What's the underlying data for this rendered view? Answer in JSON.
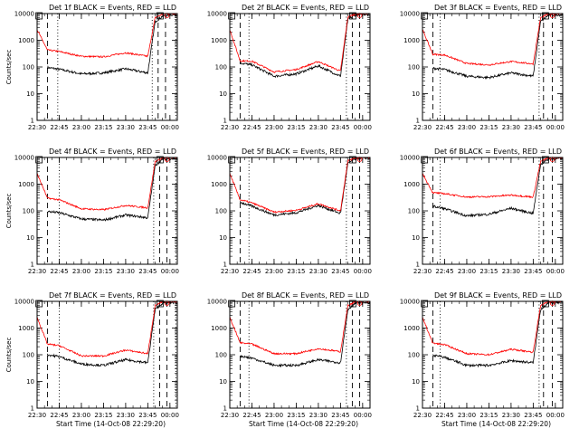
{
  "figure": {
    "background": "#ffffff"
  },
  "colors": {
    "events": "#000000",
    "lld": "#ff0000",
    "axes": "#000000"
  },
  "chart_data": [
    {
      "type": "line",
      "title": "Det 1f BLACK = Events, RED = LLD",
      "xlabel": "",
      "ylabel": "Counts/sec",
      "yscale": "log",
      "ylim": [
        1,
        10000
      ],
      "xticks": [
        "22:30",
        "22:45",
        "23:00",
        "23:15",
        "23:30",
        "23:45",
        "00:00"
      ],
      "yticks": [
        "1",
        "10",
        "100",
        "1000",
        "10000"
      ],
      "x": [
        "22:30",
        "22:37",
        "22:45",
        "23:00",
        "23:15",
        "23:30",
        "23:45",
        "23:50",
        "23:55",
        "00:00"
      ],
      "series": [
        {
          "name": "Events",
          "color": "#000000",
          "values": [
            null,
            95,
            82,
            55,
            60,
            85,
            60,
            5000,
            8000,
            9000
          ]
        },
        {
          "name": "LLD",
          "color": "#ff0000",
          "values": [
            2500,
            430,
            380,
            250,
            240,
            340,
            250,
            7000,
            9500,
            10000
          ]
        }
      ],
      "markers": [
        {
          "style": "dashed",
          "x": "22:37"
        },
        {
          "style": "dotted",
          "x": "22:44"
        },
        {
          "style": "dotted",
          "x": "23:48"
        },
        {
          "style": "dashed",
          "x": "23:52"
        },
        {
          "style": "dashed",
          "x": "23:57"
        },
        {
          "style": "dotted",
          "x": "00:04"
        }
      ]
    },
    {
      "type": "line",
      "title": "Det 2f BLACK = Events, RED = LLD",
      "xlabel": "",
      "ylabel": "",
      "yscale": "log",
      "ylim": [
        1,
        10000
      ],
      "xticks": [
        "22:30",
        "22:45",
        "23:00",
        "23:15",
        "23:30",
        "23:45",
        "00:00"
      ],
      "yticks": [
        "1",
        "10",
        "100",
        "1000",
        "10000"
      ],
      "x": [
        "22:30",
        "22:37",
        "22:45",
        "23:00",
        "23:15",
        "23:30",
        "23:45",
        "23:50",
        "23:55",
        "00:00"
      ],
      "series": [
        {
          "name": "Events",
          "color": "#000000",
          "values": [
            null,
            140,
            120,
            45,
            55,
            110,
            45,
            6000,
            9000,
            9500
          ]
        },
        {
          "name": "LLD",
          "color": "#ff0000",
          "values": [
            2500,
            170,
            165,
            65,
            80,
            160,
            70,
            7500,
            9500,
            10000
          ]
        }
      ],
      "markers": [
        {
          "style": "dashed",
          "x": "22:37"
        },
        {
          "style": "dotted",
          "x": "22:43"
        },
        {
          "style": "dotted",
          "x": "23:49"
        },
        {
          "style": "dashed",
          "x": "23:53"
        },
        {
          "style": "dashed",
          "x": "23:58"
        }
      ]
    },
    {
      "type": "line",
      "title": "Det 3f BLACK = Events, RED = LLD",
      "xlabel": "",
      "ylabel": "",
      "yscale": "log",
      "ylim": [
        1,
        10000
      ],
      "xticks": [
        "22:30",
        "22:45",
        "23:00",
        "23:15",
        "23:30",
        "23:45",
        "00:00"
      ],
      "yticks": [
        "1",
        "10",
        "100",
        "1000",
        "10000"
      ],
      "x": [
        "22:30",
        "22:37",
        "22:45",
        "23:00",
        "23:15",
        "23:30",
        "23:45",
        "23:50",
        "23:55",
        "00:00"
      ],
      "series": [
        {
          "name": "Events",
          "color": "#000000",
          "values": [
            null,
            90,
            80,
            45,
            40,
            60,
            45,
            5000,
            8500,
            9000
          ]
        },
        {
          "name": "LLD",
          "color": "#ff0000",
          "values": [
            2500,
            300,
            280,
            135,
            120,
            160,
            130,
            7000,
            9500,
            10000
          ]
        }
      ],
      "markers": [
        {
          "style": "dashed",
          "x": "22:37"
        },
        {
          "style": "dotted",
          "x": "22:42"
        },
        {
          "style": "dotted",
          "x": "23:49"
        },
        {
          "style": "dashed",
          "x": "23:52"
        },
        {
          "style": "dashed",
          "x": "23:58"
        }
      ]
    },
    {
      "type": "line",
      "title": "Det 4f BLACK = Events, RED = LLD",
      "xlabel": "",
      "ylabel": "Counts/sec",
      "yscale": "log",
      "ylim": [
        1,
        10000
      ],
      "xticks": [
        "22:30",
        "22:45",
        "23:00",
        "23:15",
        "23:30",
        "23:45",
        "00:00"
      ],
      "yticks": [
        "1",
        "10",
        "100",
        "1000",
        "10000"
      ],
      "x": [
        "22:30",
        "22:37",
        "22:45",
        "23:00",
        "23:15",
        "23:30",
        "23:45",
        "23:50",
        "23:55",
        "00:00"
      ],
      "series": [
        {
          "name": "Events",
          "color": "#000000",
          "values": [
            null,
            95,
            85,
            50,
            45,
            70,
            55,
            5000,
            8500,
            9000
          ]
        },
        {
          "name": "LLD",
          "color": "#ff0000",
          "values": [
            2500,
            300,
            260,
            120,
            110,
            160,
            130,
            7000,
            9500,
            10000
          ]
        }
      ],
      "markers": [
        {
          "style": "dashed",
          "x": "22:37"
        },
        {
          "style": "dotted",
          "x": "22:45"
        },
        {
          "style": "dotted",
          "x": "23:49"
        },
        {
          "style": "dashed",
          "x": "23:53"
        },
        {
          "style": "dashed",
          "x": "23:58"
        },
        {
          "style": "dotted",
          "x": "00:04"
        }
      ]
    },
    {
      "type": "line",
      "title": "Det 5f BLACK = Events, RED = LLD",
      "xlabel": "",
      "ylabel": "",
      "yscale": "log",
      "ylim": [
        1,
        10000
      ],
      "xticks": [
        "22:30",
        "22:45",
        "23:00",
        "23:15",
        "23:30",
        "23:45",
        "00:00"
      ],
      "yticks": [
        "1",
        "10",
        "100",
        "1000",
        "10000"
      ],
      "x": [
        "22:30",
        "22:37",
        "22:45",
        "23:00",
        "23:15",
        "23:30",
        "23:45",
        "23:50",
        "23:55",
        "00:00"
      ],
      "series": [
        {
          "name": "Events",
          "color": "#000000",
          "values": [
            null,
            210,
            150,
            70,
            85,
            160,
            80,
            6000,
            9000,
            9500
          ]
        },
        {
          "name": "LLD",
          "color": "#ff0000",
          "values": [
            2500,
            260,
            200,
            90,
            105,
            185,
            100,
            7500,
            9500,
            10000
          ]
        }
      ],
      "markers": [
        {
          "style": "dashed",
          "x": "22:37"
        },
        {
          "style": "dotted",
          "x": "22:43"
        },
        {
          "style": "dotted",
          "x": "23:49"
        },
        {
          "style": "dashed",
          "x": "23:53"
        },
        {
          "style": "dashed",
          "x": "23:58"
        }
      ]
    },
    {
      "type": "line",
      "title": "Det 6f BLACK = Events, RED = LLD",
      "xlabel": "",
      "ylabel": "",
      "yscale": "log",
      "ylim": [
        1,
        10000
      ],
      "xticks": [
        "22:30",
        "22:45",
        "23:00",
        "23:15",
        "23:30",
        "23:45",
        "00:00"
      ],
      "yticks": [
        "1",
        "10",
        "100",
        "1000",
        "10000"
      ],
      "x": [
        "22:30",
        "22:37",
        "22:45",
        "23:00",
        "23:15",
        "23:30",
        "23:45",
        "23:50",
        "23:55",
        "00:00"
      ],
      "series": [
        {
          "name": "Events",
          "color": "#000000",
          "values": [
            null,
            150,
            120,
            65,
            75,
            125,
            80,
            5500,
            8500,
            9000
          ]
        },
        {
          "name": "LLD",
          "color": "#ff0000",
          "values": [
            2500,
            480,
            440,
            330,
            340,
            390,
            330,
            7000,
            9500,
            10000
          ]
        }
      ],
      "markers": [
        {
          "style": "dashed",
          "x": "22:37"
        },
        {
          "style": "dotted",
          "x": "22:42"
        },
        {
          "style": "dotted",
          "x": "23:49"
        },
        {
          "style": "dashed",
          "x": "23:52"
        },
        {
          "style": "dashed",
          "x": "23:58"
        }
      ]
    },
    {
      "type": "line",
      "title": "Det 7f BLACK = Events, RED = LLD",
      "xlabel": "Start Time (14-Oct-08 22:29:20)",
      "ylabel": "Counts/sec",
      "yscale": "log",
      "ylim": [
        1,
        10000
      ],
      "xticks": [
        "22:30",
        "22:45",
        "23:00",
        "23:15",
        "23:30",
        "23:45",
        "00:00"
      ],
      "yticks": [
        "1",
        "10",
        "100",
        "1000",
        "10000"
      ],
      "x": [
        "22:30",
        "22:37",
        "22:45",
        "23:00",
        "23:15",
        "23:30",
        "23:45",
        "23:50",
        "23:55",
        "00:00"
      ],
      "series": [
        {
          "name": "Events",
          "color": "#000000",
          "values": [
            null,
            100,
            85,
            45,
            40,
            65,
            50,
            5000,
            8500,
            9000
          ]
        },
        {
          "name": "LLD",
          "color": "#ff0000",
          "values": [
            2500,
            250,
            220,
            90,
            90,
            150,
            110,
            7000,
            9500,
            10000
          ]
        }
      ],
      "markers": [
        {
          "style": "dashed",
          "x": "22:37"
        },
        {
          "style": "dotted",
          "x": "22:45"
        },
        {
          "style": "dotted",
          "x": "23:49"
        },
        {
          "style": "dashed",
          "x": "23:53"
        },
        {
          "style": "dashed",
          "x": "23:58"
        },
        {
          "style": "dotted",
          "x": "00:04"
        }
      ]
    },
    {
      "type": "line",
      "title": "Det 8f BLACK = Events, RED = LLD",
      "xlabel": "Start Time (14-Oct-08 22:29:20)",
      "ylabel": "",
      "yscale": "log",
      "ylim": [
        1,
        10000
      ],
      "xticks": [
        "22:30",
        "22:45",
        "23:00",
        "23:15",
        "23:30",
        "23:45",
        "00:00"
      ],
      "yticks": [
        "1",
        "10",
        "100",
        "1000",
        "10000"
      ],
      "x": [
        "22:30",
        "22:37",
        "22:45",
        "23:00",
        "23:15",
        "23:30",
        "23:45",
        "23:50",
        "23:55",
        "00:00"
      ],
      "series": [
        {
          "name": "Events",
          "color": "#000000",
          "values": [
            null,
            90,
            75,
            40,
            40,
            65,
            50,
            5000,
            8500,
            9000
          ]
        },
        {
          "name": "LLD",
          "color": "#ff0000",
          "values": [
            2500,
            280,
            250,
            110,
            110,
            170,
            130,
            7000,
            9500,
            10000
          ]
        }
      ],
      "markers": [
        {
          "style": "dashed",
          "x": "22:37"
        },
        {
          "style": "dotted",
          "x": "22:43"
        },
        {
          "style": "dotted",
          "x": "23:49"
        },
        {
          "style": "dashed",
          "x": "23:53"
        },
        {
          "style": "dashed",
          "x": "23:58"
        }
      ]
    },
    {
      "type": "line",
      "title": "Det 9f BLACK = Events, RED = LLD",
      "xlabel": "Start Time (14-Oct-08 22:29:20)",
      "ylabel": "",
      "yscale": "log",
      "ylim": [
        1,
        10000
      ],
      "xticks": [
        "22:30",
        "22:45",
        "23:00",
        "23:15",
        "23:30",
        "23:45",
        "00:00"
      ],
      "yticks": [
        "1",
        "10",
        "100",
        "1000",
        "10000"
      ],
      "x": [
        "22:30",
        "22:37",
        "22:45",
        "23:00",
        "23:15",
        "23:30",
        "23:45",
        "23:50",
        "23:55",
        "00:00"
      ],
      "series": [
        {
          "name": "Events",
          "color": "#000000",
          "values": [
            null,
            95,
            80,
            40,
            40,
            60,
            50,
            5000,
            8500,
            9000
          ]
        },
        {
          "name": "LLD",
          "color": "#ff0000",
          "values": [
            2500,
            270,
            240,
            110,
            100,
            160,
            125,
            7000,
            9500,
            10000
          ]
        }
      ],
      "markers": [
        {
          "style": "dashed",
          "x": "22:37"
        },
        {
          "style": "dotted",
          "x": "22:42"
        },
        {
          "style": "dotted",
          "x": "23:49"
        },
        {
          "style": "dashed",
          "x": "23:52"
        },
        {
          "style": "dashed",
          "x": "23:58"
        }
      ]
    }
  ]
}
